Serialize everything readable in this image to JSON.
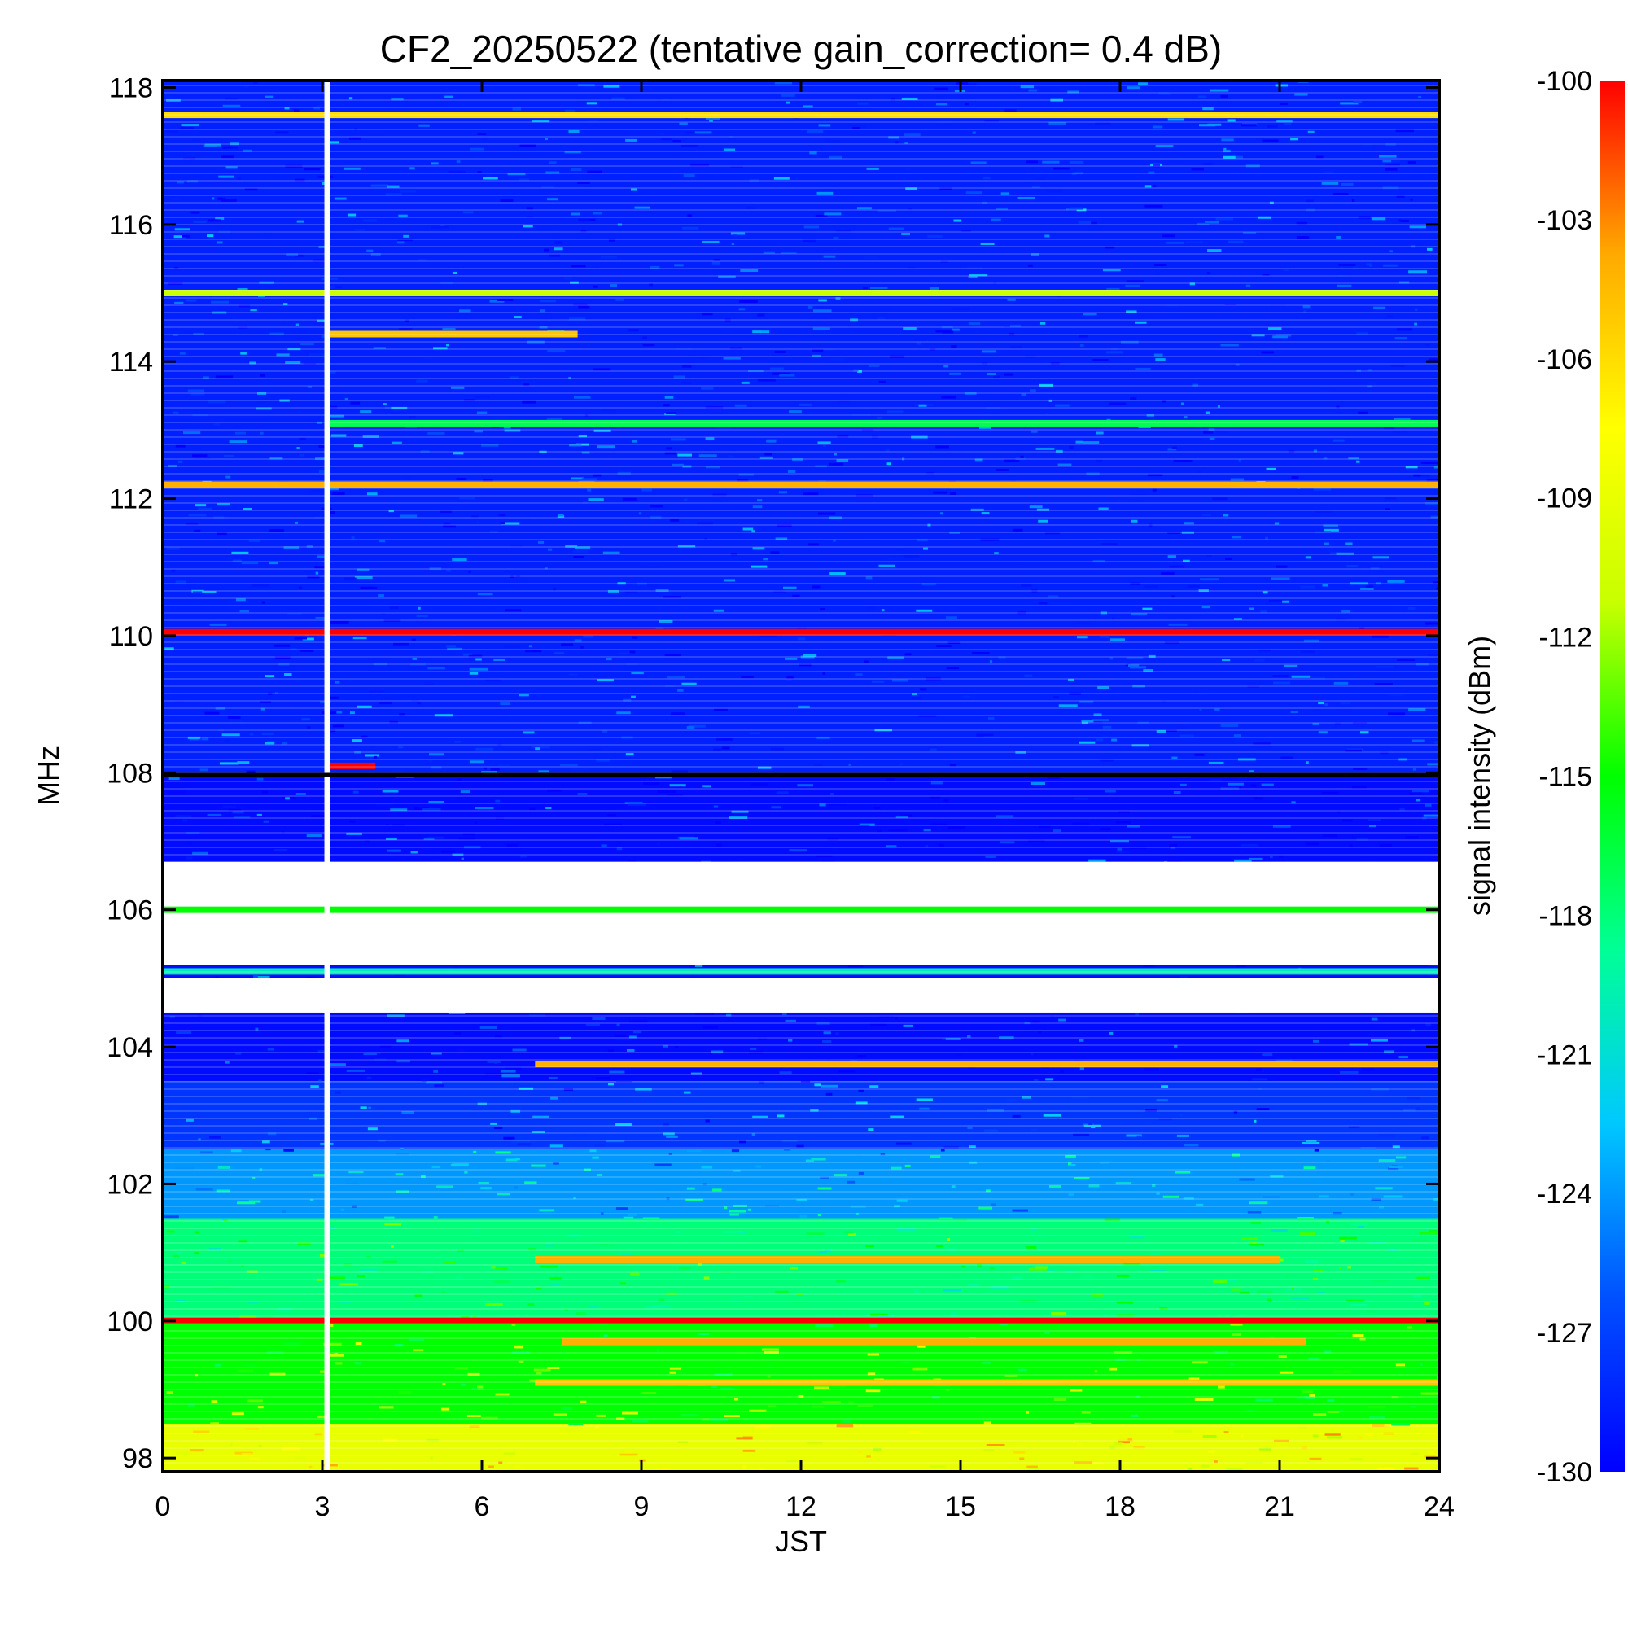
{
  "chart_data": {
    "type": "heatmap",
    "title": "CF2_20250522 (tentative gain_correction=  0.4 dB)",
    "xlabel": "JST",
    "ylabel": "MHz",
    "xlim": [
      0,
      24
    ],
    "ylim": [
      97.8,
      118.1
    ],
    "x_ticks": [
      "0",
      "3",
      "6",
      "9",
      "12",
      "15",
      "18",
      "21",
      "24"
    ],
    "y_ticks": [
      "98",
      "100",
      "102",
      "104",
      "106",
      "108",
      "110",
      "112",
      "114",
      "116",
      "118"
    ],
    "colorbar": {
      "label": "signal intensity (dBm)",
      "range": [
        -130,
        -100
      ],
      "ticks": [
        "-100",
        "-103",
        "-106",
        "-109",
        "-112",
        "-115",
        "-118",
        "-121",
        "-124",
        "-127",
        "-130"
      ],
      "colormap": [
        "#0000ff",
        "#0050ff",
        "#00c8ff",
        "#00ff96",
        "#00ff00",
        "#c8ff00",
        "#ffff00",
        "#ffaa00",
        "#ff0000"
      ]
    },
    "data_gap_jst": 3.1,
    "background_levels": [
      {
        "band_mhz": [
          108.0,
          118.1
        ],
        "dbm": -128.5
      },
      {
        "band_mhz": [
          103.5,
          108.0
        ],
        "dbm": -129.5
      },
      {
        "band_mhz": [
          102.5,
          103.5
        ],
        "dbm": -127.5
      },
      {
        "band_mhz": [
          101.5,
          102.5
        ],
        "dbm": -124
      },
      {
        "band_mhz": [
          100.0,
          101.5
        ],
        "dbm": -118
      },
      {
        "band_mhz": [
          98.5,
          100.0
        ],
        "dbm": -115
      },
      {
        "band_mhz": [
          97.8,
          98.5
        ],
        "dbm": -109
      }
    ],
    "empty_bands_mhz": [
      [
        105.2,
        106.7
      ],
      [
        104.5,
        105.0
      ]
    ],
    "series": [
      {
        "freq_mhz": 117.6,
        "dbm": -106,
        "time_jst": [
          0,
          24
        ]
      },
      {
        "freq_mhz": 115.0,
        "dbm": -111,
        "time_jst": [
          0,
          24
        ]
      },
      {
        "freq_mhz": 114.4,
        "dbm": -105,
        "time_jst": [
          3.1,
          7.8
        ]
      },
      {
        "freq_mhz": 113.1,
        "dbm": -117,
        "time_jst": [
          3.1,
          24
        ]
      },
      {
        "freq_mhz": 112.2,
        "dbm": -104,
        "time_jst": [
          0,
          24
        ]
      },
      {
        "freq_mhz": 110.05,
        "dbm": -100,
        "time_jst": [
          0,
          24
        ]
      },
      {
        "freq_mhz": 108.1,
        "dbm": -100,
        "time_jst": [
          3.1,
          4.0
        ]
      },
      {
        "freq_mhz": 105.1,
        "dbm": -120,
        "time_jst": [
          0,
          24
        ]
      },
      {
        "freq_mhz": 106.0,
        "dbm": -115,
        "time_jst": [
          0,
          24
        ]
      },
      {
        "freq_mhz": 103.75,
        "dbm": -104,
        "time_jst": [
          7.0,
          24
        ]
      },
      {
        "freq_mhz": 100.0,
        "dbm": -100,
        "time_jst": [
          0,
          24
        ]
      },
      {
        "freq_mhz": 99.7,
        "dbm": -104,
        "time_jst": [
          7.5,
          21.5
        ]
      },
      {
        "freq_mhz": 100.9,
        "dbm": -104,
        "time_jst": [
          7.0,
          21.0
        ]
      },
      {
        "freq_mhz": 99.1,
        "dbm": -105,
        "time_jst": [
          7.0,
          24
        ]
      }
    ]
  }
}
